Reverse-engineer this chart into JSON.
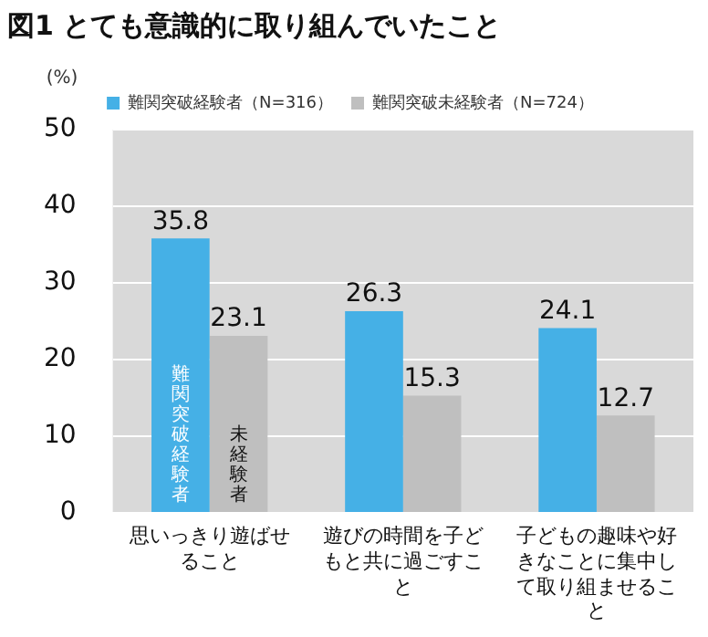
{
  "chart_data": {
    "type": "bar",
    "title": "図1 とても意識的に取り組んでいたこと",
    "ylabel": "(%)",
    "categories": [
      "思いっきり遊ばせること",
      "遊びの時間を子どもと共に過ごすこと",
      "子どもの趣味や好きなことに集中して取り組ませること"
    ],
    "series": [
      {
        "name": "難関突破経験者（N=316）",
        "color": "#45b0e6",
        "values": [
          35.8,
          26.3,
          24.1
        ]
      },
      {
        "name": "難関突破未経験者（N=724）",
        "color": "#bfbfbf",
        "values": [
          23.1,
          15.3,
          12.7
        ]
      }
    ],
    "annotations": [
      "難関突破経験者",
      "未経験者"
    ],
    "ylim": [
      0,
      50
    ],
    "yticks": [
      0,
      10,
      20,
      30,
      40,
      50
    ],
    "grid": "y",
    "legend": "top",
    "data_labels": true
  }
}
